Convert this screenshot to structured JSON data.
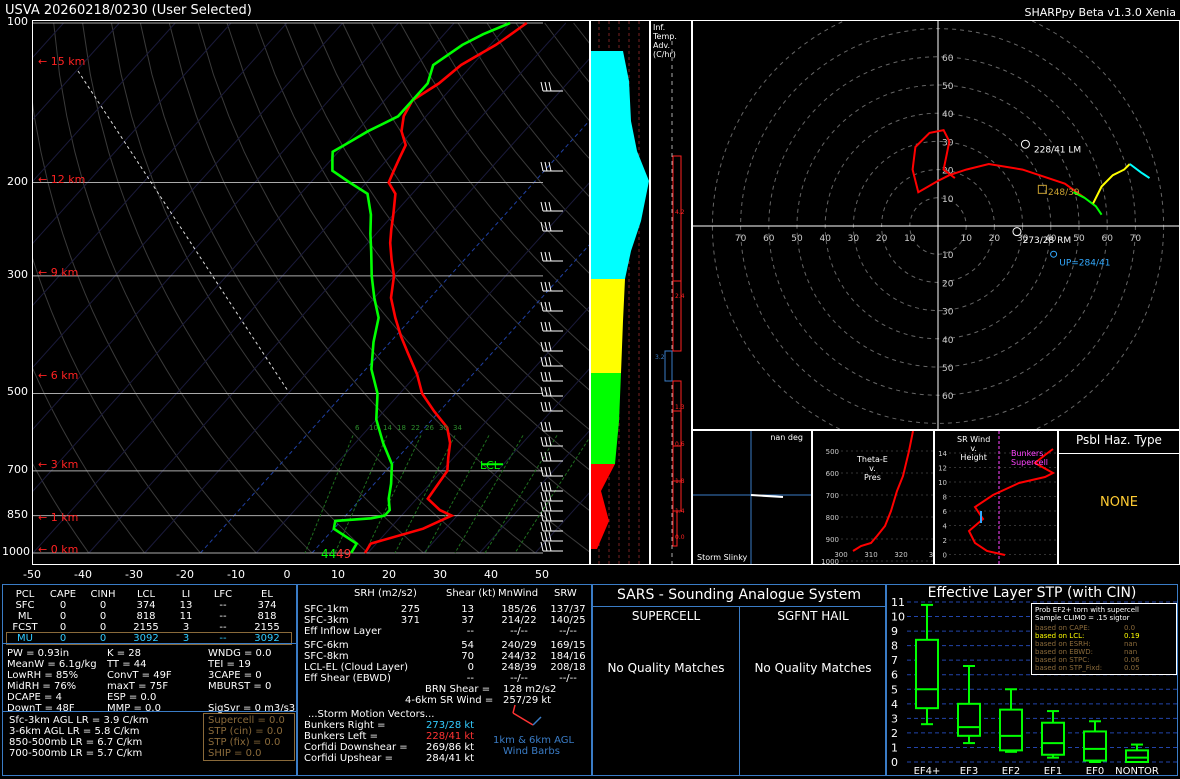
{
  "header": {
    "left_title": "USVA   20260218/0230  (User Selected)",
    "right_title": "SHARPpy Beta v1.3.0 Xenia"
  },
  "skewt": {
    "pressure_labels": [
      "100",
      "200",
      "300",
      "500",
      "700",
      "850",
      "1000"
    ],
    "temp_labels": [
      "-50",
      "-40",
      "-30",
      "-20",
      "-10",
      "0",
      "10",
      "20",
      "30",
      "40",
      "50"
    ],
    "height_labels": [
      "15 km",
      "12 km",
      "9 km",
      "6 km",
      "3 km",
      "1 km",
      "0 km"
    ],
    "mixing_labels": [
      "6",
      "10",
      "14",
      "18",
      "22",
      "26",
      "30",
      "34"
    ],
    "sfc_td_label": "44",
    "sfc_t_label": "49",
    "lcl_label": "LCL"
  },
  "inferred": {
    "title_line1": "Inf. Temp.",
    "title_line2": "Adv. (C/hr)",
    "values": [
      "4.2",
      "2.4",
      "3.2",
      "1.3",
      "0.6",
      "1.8",
      "1.4",
      "0.0"
    ]
  },
  "hodograph": {
    "axis_labels": [
      "70",
      "60",
      "50",
      "40",
      "30",
      "20",
      "10",
      "10",
      "20",
      "30",
      "40",
      "50",
      "60",
      "70"
    ],
    "ring_labels_up": [
      "60",
      "50",
      "40",
      "30",
      "20",
      "10"
    ],
    "ring_labels_down": [
      "10",
      "20",
      "30",
      "40",
      "50",
      "60"
    ],
    "lm_label": "228/41 LM",
    "rm_label": "273/28 RM",
    "up_label": "UP=284/41",
    "mean_label": "248/39"
  },
  "slinky": {
    "top": "nan deg",
    "bottom": "Storm Slinky"
  },
  "thetae": {
    "title": "Theta-E\nv.\nPres",
    "y_labels": [
      "500",
      "600",
      "700",
      "800",
      "900",
      "1000"
    ],
    "x_labels": [
      "300",
      "310",
      "320",
      "3"
    ]
  },
  "srwind": {
    "title": "SR Wind\nv.\nHeight",
    "tag1": "Bunkers",
    "tag2": "Supercell",
    "y_labels": [
      "14",
      "12",
      "10",
      "8",
      "6",
      "4",
      "2",
      "0"
    ]
  },
  "hazard": {
    "title": "Psbl Haz. Type",
    "value": "NONE"
  },
  "parcels": {
    "headers": [
      "PCL",
      "CAPE",
      "CINH",
      "LCL",
      "LI",
      "LFC",
      "EL"
    ],
    "rows": [
      [
        "SFC",
        "0",
        "0",
        "374",
        "13",
        "--",
        "374"
      ],
      [
        "ML",
        "0",
        "0",
        "818",
        "11",
        "--",
        "818"
      ],
      [
        "FCST",
        "0",
        "0",
        "2155",
        "3",
        "--",
        "2155"
      ],
      [
        "MU",
        "0",
        "0",
        "3092",
        "3",
        "--",
        "3092"
      ]
    ]
  },
  "indices": {
    "col1": [
      "PW = 0.93in",
      "MeanW = 6.1g/kg",
      "LowRH = 85%",
      "MidRH = 76%",
      "DCAPE = 4",
      "DownT = 48F"
    ],
    "col2": [
      "K = 28",
      "TT = 44",
      "ConvT = 49F",
      "maxT = 75F",
      "ESP = 0.0",
      "MMP = 0.0"
    ],
    "col3": [
      "WNDG = 0.0",
      "TEI = 19",
      "3CAPE = 0",
      "MBURST = 0",
      "",
      "SigSvr = 0 m3/s3"
    ],
    "lapse": [
      "Sfc-3km AGL LR = 3.9 C/km",
      "3-6km AGL LR = 5.8 C/km",
      "850-500mb LR = 6.7 C/km",
      "700-500mb LR = 5.7 C/km"
    ],
    "composite": [
      "Supercell = 0.0",
      "STP (cin) = 0.0",
      "STP (fix) = 0.0",
      "SHIP = 0.0"
    ]
  },
  "kinematics": {
    "headers": [
      "SRH (m2/s2)",
      "Shear (kt)",
      "MnWind",
      "SRW"
    ],
    "rows": [
      [
        "SFC-1km",
        "275",
        "13",
        "185/26",
        "137/37"
      ],
      [
        "SFC-3km",
        "371",
        "37",
        "214/22",
        "140/25"
      ],
      [
        "Eff Inflow Layer",
        "",
        "--",
        "--/--",
        "--/--"
      ],
      [
        "SFC-6km",
        "",
        "54",
        "240/29",
        "169/15"
      ],
      [
        "SFC-8km",
        "",
        "70",
        "244/32",
        "184/16"
      ],
      [
        "LCL-EL (Cloud Layer)",
        "",
        "0",
        "248/39",
        "208/18"
      ],
      [
        "Eff Shear (EBWD)",
        "",
        "--",
        "--/--",
        "--/--"
      ]
    ],
    "brn_shear_label": "BRN Shear =",
    "brn_shear_value": "128 m2/s2",
    "sr_wind_label": "4-6km SR Wind =",
    "sr_wind_value": "257/29 kt",
    "vectors_title": "...Storm Motion Vectors...",
    "vectors": [
      [
        "Bunkers Right =",
        "273/28 kt"
      ],
      [
        "Bunkers Left =",
        "228/41 kt"
      ],
      [
        "Corfidi Downshear =",
        "269/86 kt"
      ],
      [
        "Corfidi Upshear =",
        "284/41 kt"
      ]
    ],
    "barb_label1": "1km & 6km AGL",
    "barb_label2": "Wind Barbs"
  },
  "sars": {
    "title": "SARS - Sounding Analogue System",
    "col1_title": "SUPERCELL",
    "col2_title": "SGFNT HAIL",
    "col1_value": "No Quality Matches",
    "col2_value": "No Quality Matches"
  },
  "stp": {
    "title": "Effective Layer STP (with CIN)",
    "legend_title1": "Prob EF2+ torn with supercell",
    "legend_title2": "Sample CLIMO = .15 sigtor",
    "legend_rows": [
      [
        "based on CAPE:",
        "0.0"
      ],
      [
        "based on LCL:",
        "0.19"
      ],
      [
        "based on ESRH:",
        "nan"
      ],
      [
        "based on EBWD:",
        "nan"
      ],
      [
        "based on STPC:",
        "0.06"
      ],
      [
        "based on STP_Fixd:",
        "0.05"
      ]
    ],
    "y_labels": [
      "0",
      "1",
      "2",
      "3",
      "4",
      "5",
      "6",
      "7",
      "8",
      "9",
      "10",
      "11"
    ],
    "categories": [
      "EF4+",
      "EF3",
      "EF2",
      "EF1",
      "EF0",
      "NONTOR"
    ]
  },
  "colors": {
    "border": "#3a7cc6",
    "temp": "#ff0000",
    "dewp": "#00ff00",
    "cyan": "#00ffff",
    "yellow": "#ffff00",
    "mixratio": "#008000",
    "dryadiabat": "#444444"
  },
  "chart_data": [
    {
      "type": "line",
      "title": "",
      "xlabel": "",
      "ylabel": "",
      "xlim": [
        -50,
        50
      ],
      "ylim": [
        1000,
        100
      ],
      "y_scale": "log",
      "series": [
        {
          "x": [
            9.5,
            9,
            16,
            19,
            16,
            12,
            11,
            9,
            7,
            4,
            -1,
            -6,
            -10,
            -15,
            -19,
            -23,
            -27,
            -30,
            -33,
            -36,
            -38,
            -40,
            -43,
            -46,
            -47,
            -48,
            -49,
            -52,
            -54,
            -55,
            -53,
            -52,
            -49,
            -48,
            -47
          ],
          "y": [
            1000,
            960,
            900,
            850,
            830,
            790,
            700,
            660,
            620,
            580,
            540,
            500,
            460,
            420,
            390,
            360,
            330,
            300,
            280,
            260,
            245,
            230,
            210,
            200,
            190,
            180,
            170,
            160,
            150,
            140,
            130,
            120,
            110,
            105,
            100
          ]
        },
        {
          "x": [
            7,
            6.5,
            0,
            -1,
            5,
            7,
            7,
            5,
            3,
            0,
            -5,
            -10,
            -14,
            -19,
            -23,
            -26,
            -30,
            -34,
            -38,
            -41,
            -44,
            -48,
            -53,
            -58,
            -60,
            -61,
            -60,
            -58,
            -55,
            -55,
            -55,
            -57,
            -55,
            -53,
            -50
          ],
          "y": [
            1000,
            960,
            900,
            870,
            860,
            850,
            830,
            790,
            740,
            680,
            620,
            560,
            500,
            450,
            400,
            360,
            330,
            300,
            270,
            250,
            230,
            210,
            200,
            190,
            180,
            175,
            170,
            160,
            150,
            140,
            130,
            120,
            110,
            105,
            100
          ]
        }
      ]
    },
    {
      "type": "line",
      "title": "",
      "xlim": [
        -70,
        70
      ],
      "ylim": [
        -60,
        60
      ],
      "series": [
        {
          "x": [
            52,
            45,
            30,
            18,
            10,
            4,
            0,
            -7,
            -9,
            -8,
            -3,
            2,
            4,
            3,
            2,
            6
          ],
          "y": [
            10,
            15,
            20,
            22,
            20,
            18,
            16,
            12,
            20,
            28,
            33,
            34,
            30,
            25,
            20,
            17
          ]
        },
        {
          "x": [
            55,
            58,
            62,
            66,
            68
          ],
          "y": [
            8,
            14,
            18,
            20,
            22
          ]
        },
        {
          "x": [
            68,
            72,
            75
          ],
          "y": [
            22,
            19,
            17
          ]
        },
        {
          "x": [
            48,
            52,
            56,
            58
          ],
          "y": [
            12,
            10,
            7,
            4
          ]
        }
      ]
    },
    {
      "type": "bar",
      "title": "",
      "categories": [
        "EF4+",
        "EF3",
        "EF2",
        "EF1",
        "EF0",
        "NONTOR"
      ],
      "ylim": [
        0,
        11
      ],
      "series": [
        {
          "name": "",
          "values": [
            5.0,
            2.4,
            1.8,
            1.3,
            0.9,
            0.3
          ]
        }
      ]
    }
  ]
}
